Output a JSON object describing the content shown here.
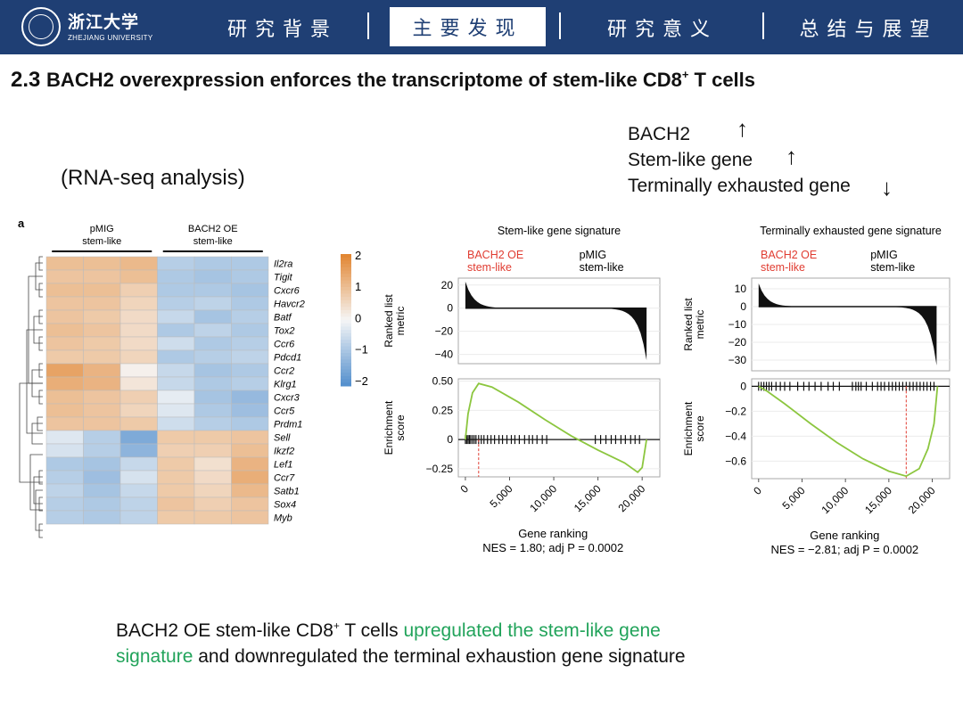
{
  "header": {
    "logo_cn": "浙江大学",
    "logo_en": "ZHEJIANG UNIVERSITY",
    "tabs": [
      {
        "label": "研究背景"
      },
      {
        "label": "主要发现"
      },
      {
        "label": "研究意义"
      },
      {
        "label": "总结与展望"
      }
    ],
    "active_tab": 1
  },
  "slide": {
    "title_num": "2.3",
    "title_main": "BACH2 overexpression enforces the transcriptome of stem-like CD8",
    "title_sup": "+",
    "title_tail": " T cells",
    "subtitle": "(RNA-seq analysis)",
    "legend": {
      "line1": "BACH2",
      "line2": "Stem-like gene",
      "line3": "Terminally exhausted gene",
      "up_arrow": "↑",
      "down_arrow": "↓"
    },
    "conclusion": {
      "p1": "BACH2 OE stem-like CD8",
      "sup": "+",
      "p2": " T cells ",
      "green1": "upregulated the stem-like gene",
      "green2": "signature",
      "p3": " and downregulated the terminal exhaustion gene signature"
    }
  },
  "chart_data": [
    {
      "type": "heatmap",
      "panel_label": "a",
      "groups": [
        {
          "label1": "pMIG",
          "label2": "stem-like"
        },
        {
          "label1": "BACH2 OE",
          "label2": "stem-like"
        }
      ],
      "genes": [
        "Il2ra",
        "Tigit",
        "Cxcr6",
        "Havcr2",
        "Batf",
        "Tox2",
        "Ccr6",
        "Pdcd1",
        "Ccr2",
        "Klrg1",
        "Cxcr3",
        "Ccr5",
        "Prdm1",
        "Sell",
        "Ikzf2",
        "Lef1",
        "Ccr7",
        "Satb1",
        "Sox4",
        "Myb"
      ],
      "values": [
        [
          1.0,
          1.0,
          1.1,
          -0.8,
          -0.9,
          -0.9
        ],
        [
          0.9,
          0.9,
          1.0,
          -0.9,
          -1.0,
          -0.9
        ],
        [
          1.0,
          1.0,
          0.7,
          -0.9,
          -0.9,
          -1.0
        ],
        [
          0.9,
          0.9,
          0.6,
          -0.8,
          -0.7,
          -0.9
        ],
        [
          0.9,
          0.8,
          0.5,
          -0.6,
          -1.0,
          -0.8
        ],
        [
          1.0,
          0.9,
          0.5,
          -0.9,
          -0.7,
          -0.9
        ],
        [
          0.9,
          0.8,
          0.5,
          -0.5,
          -0.9,
          -0.8
        ],
        [
          0.8,
          0.8,
          0.6,
          -0.9,
          -0.8,
          -0.7
        ],
        [
          1.5,
          1.2,
          0.1,
          -0.6,
          -1.0,
          -0.9
        ],
        [
          1.3,
          1.2,
          0.3,
          -0.6,
          -0.9,
          -0.8
        ],
        [
          1.0,
          0.9,
          0.7,
          -0.2,
          -1.0,
          -1.2
        ],
        [
          1.0,
          0.9,
          0.6,
          -0.3,
          -0.9,
          -1.1
        ],
        [
          0.9,
          0.9,
          0.8,
          -0.5,
          -0.8,
          -0.9
        ],
        [
          -0.3,
          -0.8,
          -1.5,
          0.8,
          0.8,
          0.9
        ],
        [
          -0.4,
          -0.8,
          -1.3,
          0.7,
          0.7,
          1.0
        ],
        [
          -0.9,
          -1.0,
          -0.6,
          0.8,
          0.4,
          1.2
        ],
        [
          -0.8,
          -1.1,
          -0.4,
          0.8,
          0.5,
          1.3
        ],
        [
          -0.7,
          -1.0,
          -0.6,
          0.8,
          0.6,
          1.1
        ],
        [
          -0.8,
          -0.9,
          -0.7,
          0.9,
          0.7,
          0.9
        ],
        [
          -0.8,
          -0.9,
          -0.7,
          0.8,
          0.8,
          0.9
        ]
      ],
      "scale_ticks": [
        "2",
        "1",
        "0",
        "−1",
        "−2"
      ],
      "range": [
        -2,
        2
      ]
    },
    {
      "type": "line",
      "title": "Stem-like gene signature",
      "left_label": [
        "BACH2 OE",
        "stem-like"
      ],
      "right_label": [
        "pMIG",
        "stem-like"
      ],
      "metric_ylabel": [
        "Ranked list",
        "metric"
      ],
      "metric_yticks": [
        20,
        0,
        -20,
        -40
      ],
      "metric_ytick_labels": [
        "20",
        "0",
        "−20",
        "−40"
      ],
      "metric_ylim": [
        -48,
        26
      ],
      "es_ylabel": [
        "Enrichment",
        "score"
      ],
      "es_yticks": [
        0.5,
        0.25,
        0,
        -0.25
      ],
      "es_ytick_labels": [
        "0.50",
        "0.25",
        "0",
        "−0.25"
      ],
      "es_ylim": [
        -0.32,
        0.52
      ],
      "es_curve": [
        [
          0,
          0
        ],
        [
          300,
          0.22
        ],
        [
          800,
          0.4
        ],
        [
          1500,
          0.48
        ],
        [
          3000,
          0.45
        ],
        [
          6000,
          0.32
        ],
        [
          9000,
          0.17
        ],
        [
          12000,
          0.03
        ],
        [
          15000,
          -0.09
        ],
        [
          18000,
          -0.2
        ],
        [
          19500,
          -0.28
        ],
        [
          20000,
          -0.24
        ],
        [
          20500,
          0
        ]
      ],
      "peak_rank": 1500,
      "hits": [
        0,
        150,
        300,
        450,
        600,
        800,
        1000,
        1200,
        1500,
        1800,
        2100,
        2500,
        2900,
        3300,
        3800,
        4200,
        4700,
        5200,
        5600,
        6100,
        6700,
        7200,
        7600,
        8100,
        8700,
        9200,
        14700,
        15300,
        15900,
        16500,
        17000,
        17600,
        18100,
        18700,
        19200,
        19700
      ],
      "xticks": [
        0,
        5000,
        10000,
        15000,
        20000
      ],
      "xtick_labels": [
        "0",
        "5,000",
        "10,000",
        "15,000",
        "20,000"
      ],
      "xlim": [
        -800,
        22000
      ],
      "xlabel": "Gene ranking",
      "nes_line": "NES = 1.80; adj P = 0.0002"
    },
    {
      "type": "line",
      "title": "Terminally exhausted gene signature",
      "left_label": [
        "BACH2 OE",
        "stem-like"
      ],
      "right_label": [
        "pMIG",
        "stem-like"
      ],
      "metric_ylabel": [
        "Ranked list",
        "metric"
      ],
      "metric_yticks": [
        10,
        0,
        -10,
        -20,
        -30
      ],
      "metric_ytick_labels": [
        "10",
        "0",
        "−10",
        "−20",
        "−30"
      ],
      "metric_ylim": [
        -36,
        16
      ],
      "es_ylabel": [
        "Enrichment",
        "score"
      ],
      "es_yticks": [
        0,
        -0.2,
        -0.4,
        -0.6
      ],
      "es_ytick_labels": [
        "0",
        "−0.2",
        "−0.4",
        "−0.6"
      ],
      "es_ylim": [
        -0.74,
        0.06
      ],
      "es_curve": [
        [
          0,
          0
        ],
        [
          1000,
          -0.04
        ],
        [
          3000,
          -0.14
        ],
        [
          6000,
          -0.3
        ],
        [
          9000,
          -0.45
        ],
        [
          12000,
          -0.58
        ],
        [
          15000,
          -0.68
        ],
        [
          17000,
          -0.72
        ],
        [
          18500,
          -0.66
        ],
        [
          19500,
          -0.5
        ],
        [
          20200,
          -0.3
        ],
        [
          20600,
          0
        ]
      ],
      "peak_rank": 17000,
      "hits": [
        0,
        300,
        600,
        900,
        1200,
        1500,
        2000,
        2500,
        3000,
        3600,
        4500,
        5200,
        5800,
        6500,
        7200,
        8000,
        8600,
        9300,
        10800,
        11200,
        11500,
        11800,
        12400,
        13100,
        13700,
        14100,
        14500,
        15000,
        15400,
        15800,
        16200,
        16600,
        17000,
        17400,
        17800,
        18200,
        18600,
        19000,
        19400,
        19800,
        20200
      ],
      "xticks": [
        0,
        5000,
        10000,
        15000,
        20000
      ],
      "xtick_labels": [
        "0",
        "5,000",
        "10,000",
        "15,000",
        "20,000"
      ],
      "xlim": [
        -800,
        22000
      ],
      "xlabel": "Gene ranking",
      "nes_line": "NES = −2.81; adj P = 0.0002"
    }
  ]
}
